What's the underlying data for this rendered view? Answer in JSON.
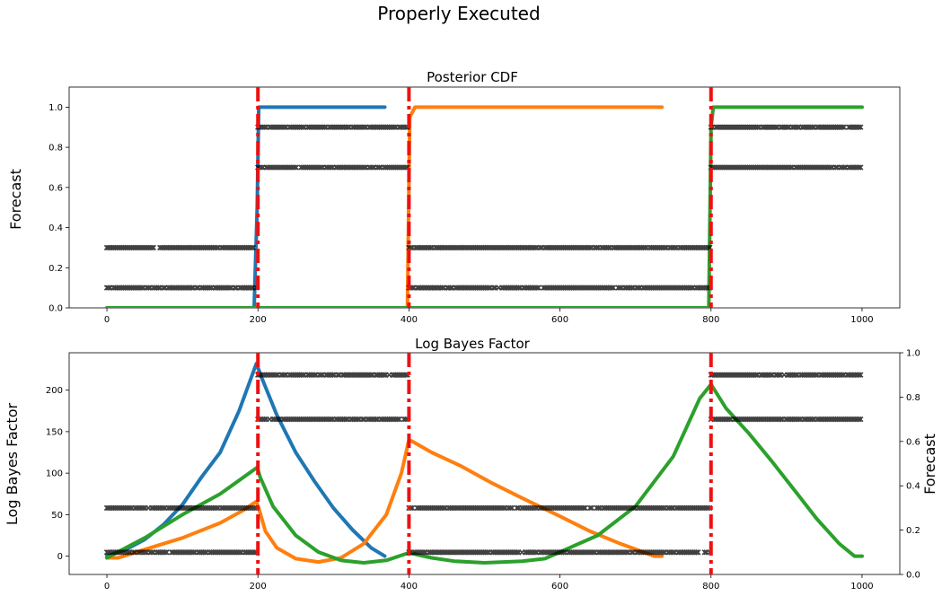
{
  "figure": {
    "suptitle": "Properly Executed",
    "colors": {
      "series_blue": "#1f77b4",
      "series_orange": "#ff7f0e",
      "series_green": "#2ca02c",
      "changepoint_red": "#ee1111",
      "forecast_marker": "#000000"
    }
  },
  "chart_data": [
    {
      "type": "line",
      "title": "Posterior CDF",
      "ylabel": "Forecast",
      "xlabel": "",
      "xlim": [
        -50,
        1050
      ],
      "ylim": [
        0,
        1.1
      ],
      "xticks": [
        0,
        200,
        400,
        600,
        800,
        1000
      ],
      "yticks": [
        0.0,
        0.2,
        0.4,
        0.6,
        0.8,
        1.0
      ],
      "ytick_labels": [
        "0.0",
        "0.2",
        "0.4",
        "0.6",
        "0.8",
        "1.0"
      ],
      "changepoints": [
        200,
        400,
        800
      ],
      "series": [
        {
          "color": "#1f77b4",
          "points": [
            [
              0,
              0
            ],
            [
              195,
              0
            ],
            [
              199,
              0.5
            ],
            [
              201,
              1.0
            ],
            [
              368,
              1.0
            ]
          ]
        },
        {
          "color": "#ff7f0e",
          "points": [
            [
              0,
              0
            ],
            [
              398,
              0
            ],
            [
              401,
              0.95
            ],
            [
              408,
              1.0
            ],
            [
              735,
              1.0
            ]
          ]
        },
        {
          "color": "#2ca02c",
          "points": [
            [
              0,
              0
            ],
            [
              797,
              0
            ],
            [
              800,
              0.9
            ],
            [
              803,
              1.0
            ],
            [
              1000,
              1.0
            ]
          ]
        }
      ],
      "forecast_levels": [
        {
          "x": [
            0,
            200
          ],
          "y": [
            0.1,
            0.3
          ]
        },
        {
          "x": [
            200,
            400
          ],
          "y": [
            0.7,
            0.9
          ]
        },
        {
          "x": [
            400,
            800
          ],
          "y": [
            0.1,
            0.3
          ]
        },
        {
          "x": [
            800,
            1000
          ],
          "y": [
            0.7,
            0.9
          ]
        }
      ]
    },
    {
      "type": "line",
      "title": "Log Bayes Factor",
      "ylabel": "Log Bayes Factor",
      "y2label": "Forecast",
      "xlabel": "",
      "xlim": [
        -50,
        1050
      ],
      "ylim": [
        -22,
        245
      ],
      "y2lim": [
        0,
        1.0
      ],
      "xticks": [
        0,
        200,
        400,
        600,
        800,
        1000
      ],
      "yticks": [
        0,
        50,
        100,
        150,
        200
      ],
      "y2ticks": [
        0.0,
        0.2,
        0.4,
        0.6,
        0.8,
        1.0
      ],
      "y2tick_labels": [
        "0.0",
        "0.2",
        "0.4",
        "0.6",
        "0.8",
        "1.0"
      ],
      "changepoints": [
        200,
        400,
        800
      ],
      "series": [
        {
          "color": "#1f77b4",
          "points": [
            [
              0,
              0
            ],
            [
              25,
              8
            ],
            [
              50,
              20
            ],
            [
              75,
              38
            ],
            [
              100,
              62
            ],
            [
              125,
              95
            ],
            [
              150,
              125
            ],
            [
              175,
              175
            ],
            [
              198,
              232
            ],
            [
              205,
              215
            ],
            [
              225,
              170
            ],
            [
              250,
              125
            ],
            [
              275,
              90
            ],
            [
              300,
              58
            ],
            [
              325,
              32
            ],
            [
              350,
              10
            ],
            [
              368,
              0
            ]
          ]
        },
        {
          "color": "#ff7f0e",
          "points": [
            [
              0,
              -2
            ],
            [
              15,
              -2
            ],
            [
              50,
              8
            ],
            [
              100,
              22
            ],
            [
              150,
              40
            ],
            [
              180,
              55
            ],
            [
              198,
              66
            ],
            [
              202,
              55
            ],
            [
              210,
              30
            ],
            [
              225,
              10
            ],
            [
              250,
              -3
            ],
            [
              280,
              -7
            ],
            [
              310,
              -2
            ],
            [
              340,
              15
            ],
            [
              370,
              50
            ],
            [
              390,
              100
            ],
            [
              400,
              140
            ],
            [
              405,
              138
            ],
            [
              430,
              125
            ],
            [
              470,
              108
            ],
            [
              510,
              88
            ],
            [
              550,
              70
            ],
            [
              600,
              48
            ],
            [
              640,
              30
            ],
            [
              680,
              15
            ],
            [
              710,
              5
            ],
            [
              725,
              0
            ],
            [
              735,
              0
            ]
          ]
        },
        {
          "color": "#2ca02c",
          "points": [
            [
              0,
              -2
            ],
            [
              50,
              22
            ],
            [
              100,
              50
            ],
            [
              150,
              75
            ],
            [
              199,
              107
            ],
            [
              203,
              95
            ],
            [
              220,
              60
            ],
            [
              250,
              25
            ],
            [
              280,
              5
            ],
            [
              310,
              -5
            ],
            [
              340,
              -8
            ],
            [
              370,
              -5
            ],
            [
              400,
              4
            ],
            [
              430,
              -2
            ],
            [
              460,
              -6
            ],
            [
              500,
              -8
            ],
            [
              550,
              -6
            ],
            [
              580,
              -3
            ],
            [
              600,
              5
            ],
            [
              650,
              25
            ],
            [
              700,
              60
            ],
            [
              750,
              120
            ],
            [
              785,
              190
            ],
            [
              800,
              207
            ],
            [
              820,
              178
            ],
            [
              850,
              148
            ],
            [
              880,
              115
            ],
            [
              910,
              80
            ],
            [
              940,
              45
            ],
            [
              970,
              15
            ],
            [
              990,
              0
            ],
            [
              1000,
              0
            ]
          ]
        }
      ],
      "forecast_levels": [
        {
          "x": [
            0,
            200
          ],
          "y": [
            0.1,
            0.3
          ]
        },
        {
          "x": [
            200,
            400
          ],
          "y": [
            0.7,
            0.9
          ]
        },
        {
          "x": [
            400,
            800
          ],
          "y": [
            0.1,
            0.3
          ]
        },
        {
          "x": [
            800,
            1000
          ],
          "y": [
            0.7,
            0.9
          ]
        }
      ]
    }
  ]
}
